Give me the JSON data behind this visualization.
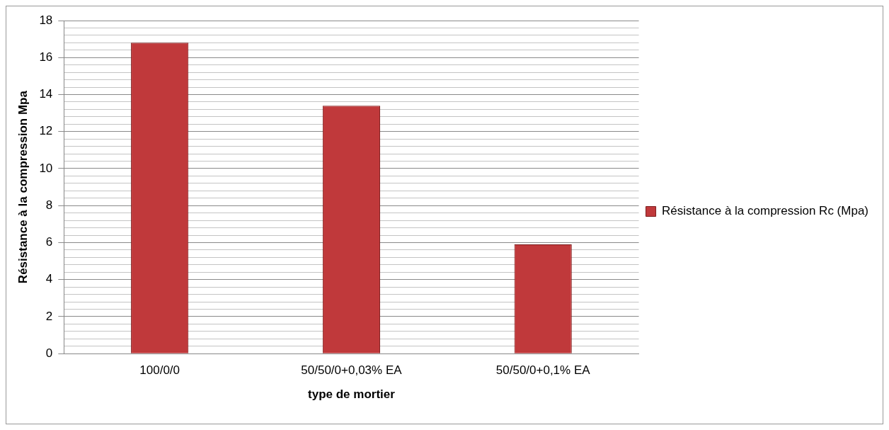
{
  "chart_data": {
    "type": "bar",
    "xlabel": "type de mortier",
    "ylabel": "Résistance à la compression Mpa",
    "categories": [
      "100/0/0",
      "50/50/0+0,03% EA",
      "50/50/0+0,1% EA"
    ],
    "series": [
      {
        "name": "Résistance à la compression Rc (Mpa)",
        "color": "#c0393b",
        "values": [
          16.8,
          13.4,
          5.9
        ]
      }
    ],
    "ylim": [
      0,
      18
    ],
    "yticks": [
      0,
      {
        "value": 0.4,
        "label": null
      },
      {
        "value": 0.8,
        "label": null
      },
      {
        "value": 1.2,
        "label": null
      },
      {
        "value": 1.6,
        "label": null
      },
      2,
      {
        "value": 2.4,
        "label": null
      },
      {
        "value": 2.8,
        "label": null
      },
      {
        "value": 3.2,
        "label": null
      },
      {
        "value": 3.6,
        "label": null
      },
      4,
      {
        "value": 4.4,
        "label": null
      },
      {
        "value": 4.8,
        "label": null
      },
      {
        "value": 5.2,
        "label": null
      },
      {
        "value": 5.6,
        "label": null
      },
      6,
      {
        "value": 6.4,
        "label": null
      },
      {
        "value": 6.8,
        "label": null
      },
      {
        "value": 7.2,
        "label": null
      },
      {
        "value": 7.6,
        "label": null
      },
      8,
      {
        "value": 8.4,
        "label": null
      },
      {
        "value": 8.8,
        "label": null
      },
      {
        "value": 9.2,
        "label": null
      },
      {
        "value": 9.6,
        "label": null
      },
      10,
      {
        "value": 10.4,
        "label": null
      },
      {
        "value": 10.8,
        "label": null
      },
      {
        "value": 11.2,
        "label": null
      },
      {
        "value": 11.6,
        "label": null
      },
      12,
      {
        "value": 12.4,
        "label": null
      },
      {
        "value": 12.8,
        "label": null
      },
      {
        "value": 13.2,
        "label": null
      },
      {
        "value": 13.6,
        "label": null
      },
      14,
      {
        "value": 14.4,
        "label": null
      },
      {
        "value": 14.8,
        "label": null
      },
      {
        "value": 15.2,
        "label": null
      },
      {
        "value": 15.6,
        "label": null
      },
      16,
      {
        "value": 16.4,
        "label": null
      },
      {
        "value": 16.8,
        "label": null
      },
      {
        "value": 17.2,
        "label": null
      },
      {
        "value": 17.6,
        "label": null
      },
      18
    ],
    "grid": "y",
    "legend": "right"
  }
}
